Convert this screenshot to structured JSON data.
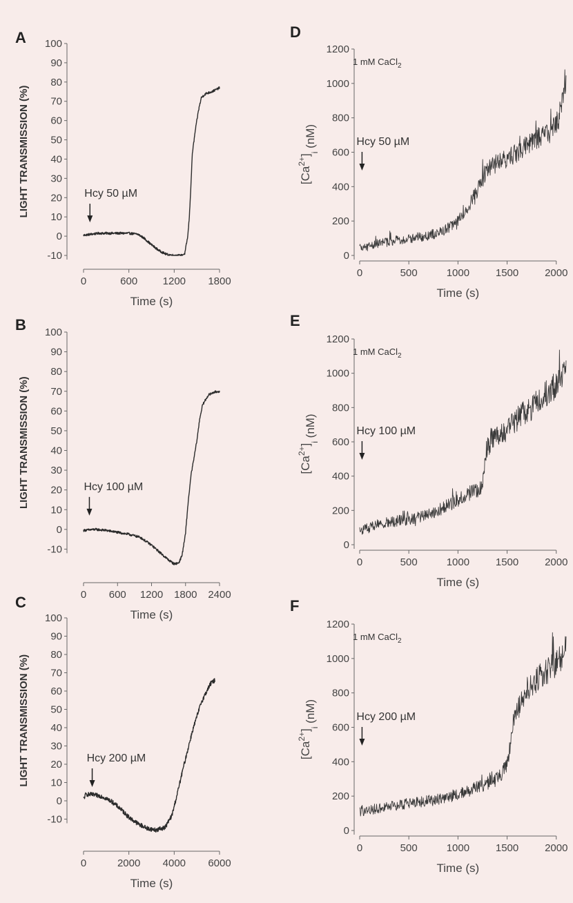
{
  "figure": {
    "background": "#f8ecea",
    "ink": "#222222",
    "trace_color": "#2b2b2b",
    "noisy_trace_color": "#3a3a3a"
  },
  "chart_data": [
    {
      "panel": "A",
      "type": "line",
      "ylabel": "LIGHT TRANSMISSION (%)",
      "xlabel": "Time (s)",
      "xlim": [
        0,
        1800
      ],
      "ylim": [
        -10,
        100
      ],
      "xticks": [
        0,
        600,
        1200,
        1800
      ],
      "yticks": [
        -10,
        0,
        10,
        20,
        30,
        40,
        50,
        60,
        70,
        80,
        90,
        100
      ],
      "annotation": {
        "text": "Hcy 50 µM",
        "x": 30
      },
      "series": [
        {
          "points": [
            [
              0,
              0.5
            ],
            [
              200,
              1.5
            ],
            [
              400,
              1.5
            ],
            [
              600,
              1.5
            ],
            [
              720,
              1.0
            ],
            [
              800,
              -1
            ],
            [
              900,
              -4.5
            ],
            [
              1000,
              -7.5
            ],
            [
              1100,
              -9.5
            ],
            [
              1200,
              -10
            ],
            [
              1300,
              -10
            ],
            [
              1340,
              -9
            ],
            [
              1380,
              0
            ],
            [
              1400,
              10
            ],
            [
              1420,
              25
            ],
            [
              1440,
              43
            ],
            [
              1480,
              55
            ],
            [
              1520,
              65
            ],
            [
              1560,
              72
            ],
            [
              1620,
              74
            ],
            [
              1700,
              75
            ],
            [
              1800,
              77
            ]
          ],
          "noise": 0.6
        }
      ]
    },
    {
      "panel": "B",
      "type": "line",
      "ylabel": "LIGHT TRANSMISSION (%)",
      "xlabel": "Time (s)",
      "xlim": [
        0,
        2400
      ],
      "ylim": [
        -20,
        100
      ],
      "xticks": [
        0,
        600,
        1200,
        1800,
        2400
      ],
      "yticks": [
        -10,
        0,
        10,
        20,
        30,
        40,
        50,
        60,
        70,
        80,
        90,
        100
      ],
      "annotation": {
        "text": "Hcy 100 µM",
        "x": 30
      },
      "series": [
        {
          "points": [
            [
              0,
              -0.5
            ],
            [
              200,
              0
            ],
            [
              400,
              -0.5
            ],
            [
              600,
              -1.5
            ],
            [
              800,
              -2.5
            ],
            [
              1000,
              -4
            ],
            [
              1200,
              -8
            ],
            [
              1400,
              -13
            ],
            [
              1500,
              -15.5
            ],
            [
              1600,
              -17.5
            ],
            [
              1680,
              -17
            ],
            [
              1740,
              -13
            ],
            [
              1800,
              -2
            ],
            [
              1850,
              15
            ],
            [
              1900,
              28
            ],
            [
              1960,
              38
            ],
            [
              2000,
              45
            ],
            [
              2050,
              56
            ],
            [
              2100,
              63
            ],
            [
              2200,
              68
            ],
            [
              2300,
              69.5
            ],
            [
              2400,
              70
            ]
          ],
          "noise": 0.6
        }
      ]
    },
    {
      "panel": "C",
      "type": "line",
      "ylabel": "LIGHT TRANSMISSION (%)",
      "xlabel": "Time (s)",
      "xlim": [
        0,
        6000
      ],
      "ylim": [
        -20,
        100
      ],
      "xticks": [
        0,
        2000,
        4000,
        6000
      ],
      "yticks": [
        -10,
        0,
        10,
        20,
        30,
        40,
        50,
        60,
        70,
        80,
        90,
        100
      ],
      "annotation": {
        "text": "Hcy 200 µM",
        "x": 200
      },
      "series": [
        {
          "points": [
            [
              0,
              1
            ],
            [
              100,
              3.5
            ],
            [
              300,
              3.5
            ],
            [
              800,
              2.5
            ],
            [
              1200,
              0
            ],
            [
              1600,
              -4
            ],
            [
              2000,
              -9
            ],
            [
              2400,
              -12.5
            ],
            [
              2800,
              -15
            ],
            [
              3200,
              -16
            ],
            [
              3600,
              -14.5
            ],
            [
              3900,
              -8
            ],
            [
              4100,
              2
            ],
            [
              4400,
              18
            ],
            [
              4800,
              38
            ],
            [
              5200,
              54
            ],
            [
              5600,
              64
            ],
            [
              5800,
              66
            ]
          ],
          "noise": 1.2
        }
      ]
    },
    {
      "panel": "D",
      "type": "line",
      "ylabel": "[Ca2+]i (nM)",
      "xlabel": "Time (s)",
      "xlim": [
        0,
        2100
      ],
      "ylim": [
        0,
        1200
      ],
      "xticks": [
        0,
        500,
        1000,
        1500,
        2000
      ],
      "yticks": [
        0,
        200,
        400,
        600,
        800,
        1000,
        1200
      ],
      "label": "1 mM CaCl2",
      "annotation": {
        "text": "Hcy 50 µM",
        "x": 10
      },
      "series": [
        {
          "points": [
            [
              0,
              40
            ],
            [
              200,
              70
            ],
            [
              400,
              90
            ],
            [
              600,
              105
            ],
            [
              800,
              130
            ],
            [
              900,
              160
            ],
            [
              1000,
              200
            ],
            [
              1100,
              280
            ],
            [
              1200,
              380
            ],
            [
              1300,
              500
            ],
            [
              1400,
              540
            ],
            [
              1500,
              560
            ],
            [
              1600,
              600
            ],
            [
              1700,
              640
            ],
            [
              1800,
              680
            ],
            [
              1900,
              700
            ],
            [
              2000,
              760
            ],
            [
              2050,
              850
            ],
            [
              2100,
              1020
            ]
          ],
          "noise": 55
        }
      ]
    },
    {
      "panel": "E",
      "type": "line",
      "ylabel": "[Ca2+]i (nM)",
      "xlabel": "Time (s)",
      "xlim": [
        0,
        2100
      ],
      "ylim": [
        0,
        1200
      ],
      "xticks": [
        0,
        500,
        1000,
        1500,
        2000
      ],
      "yticks": [
        0,
        200,
        400,
        600,
        800,
        1000,
        1200
      ],
      "label": "1 mM CaCl2",
      "annotation": {
        "text": "Hcy 100 µM",
        "x": 10
      },
      "series": [
        {
          "points": [
            [
              0,
              80
            ],
            [
              200,
              120
            ],
            [
              400,
              140
            ],
            [
              600,
              160
            ],
            [
              800,
              200
            ],
            [
              1000,
              260
            ],
            [
              1150,
              310
            ],
            [
              1250,
              330
            ],
            [
              1280,
              540
            ],
            [
              1350,
              620
            ],
            [
              1450,
              650
            ],
            [
              1550,
              700
            ],
            [
              1650,
              760
            ],
            [
              1750,
              800
            ],
            [
              1850,
              860
            ],
            [
              1950,
              900
            ],
            [
              2050,
              950
            ],
            [
              2100,
              1000
            ]
          ],
          "noise": 60
        }
      ]
    },
    {
      "panel": "F",
      "type": "line",
      "ylabel": "[Ca2+]i (nM)",
      "xlabel": "Time (s)",
      "xlim": [
        0,
        2100
      ],
      "ylim": [
        0,
        1200
      ],
      "xticks": [
        0,
        500,
        1000,
        1500,
        2000
      ],
      "yticks": [
        0,
        200,
        400,
        600,
        800,
        1000,
        1200
      ],
      "label": "1 mM CaCl2",
      "annotation": {
        "text": "Hcy 200 µM",
        "x": 10
      },
      "series": [
        {
          "points": [
            [
              0,
              110
            ],
            [
              200,
              130
            ],
            [
              400,
              150
            ],
            [
              600,
              165
            ],
            [
              800,
              180
            ],
            [
              1000,
              210
            ],
            [
              1200,
              250
            ],
            [
              1400,
              300
            ],
            [
              1480,
              360
            ],
            [
              1520,
              450
            ],
            [
              1560,
              620
            ],
            [
              1600,
              700
            ],
            [
              1700,
              800
            ],
            [
              1800,
              880
            ],
            [
              1900,
              920
            ],
            [
              2000,
              960
            ],
            [
              2100,
              1060
            ]
          ],
          "noise": 55
        }
      ]
    }
  ]
}
